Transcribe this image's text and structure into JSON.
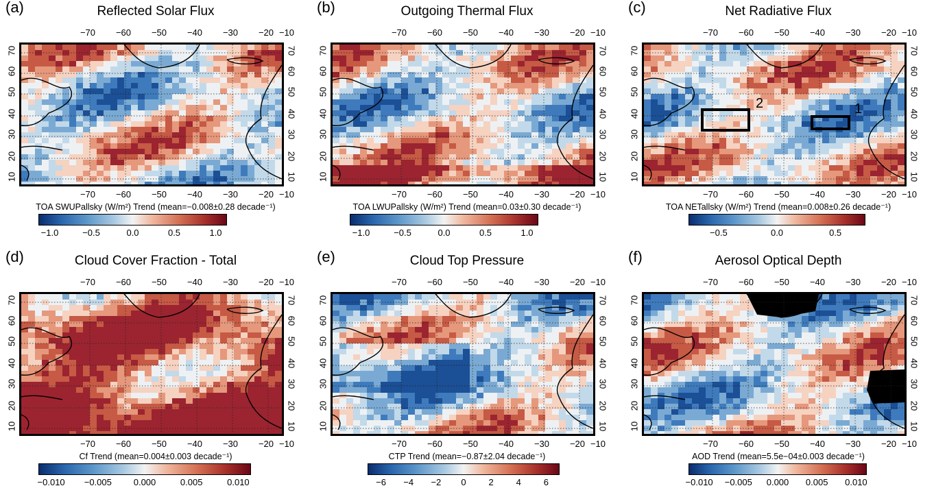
{
  "panels": [
    {
      "label": "(a)",
      "title": "Reflected Solar Flux",
      "colorbar_label": "TOA SWUPallsky (W/m²) Trend (mean=−0.008±0.28 decade⁻¹)",
      "colorbar_ticks": [
        "−1.0",
        "−0.5",
        "0.0",
        "0.5",
        "1.0"
      ]
    },
    {
      "label": "(b)",
      "title": "Outgoing Thermal Flux",
      "colorbar_label": "TOA LWUPallsky (W/m²) Trend (mean=0.03±0.30 decade⁻¹)",
      "colorbar_ticks": [
        "−1.0",
        "−0.5",
        "0.0",
        "0.5",
        "1.0"
      ]
    },
    {
      "label": "(c)",
      "title": "Net Radiative Flux",
      "colorbar_label": "TOA NETallsky (W/m²) Trend (mean=0.008±0.26 decade⁻¹)",
      "colorbar_ticks": [
        "−0.5",
        "0.0",
        "0.5"
      ],
      "boxes": [
        "2",
        "1"
      ]
    },
    {
      "label": "(d)",
      "title": "Cloud Cover Fraction - Total",
      "colorbar_label": "Cf Trend (mean=0.004±0.003 decade⁻¹)",
      "colorbar_ticks": [
        "−0.010",
        "−0.005",
        "0.000",
        "0.005",
        "0.010"
      ]
    },
    {
      "label": "(e)",
      "title": "Cloud Top Pressure",
      "colorbar_label": "CTP Trend (mean=−0.87±2.04 decade⁻¹)",
      "colorbar_ticks": [
        "−6",
        "−4",
        "−2",
        "0",
        "2",
        "4",
        "6"
      ]
    },
    {
      "label": "(f)",
      "title": "Aerosol Optical Depth",
      "colorbar_label": "AOD Trend (mean=5.5e−04±0.003 decade⁻¹)",
      "colorbar_ticks": [
        "−0.010",
        "−0.005",
        "0.000",
        "0.005",
        "0.010"
      ]
    }
  ],
  "lon_ticks": [
    "−70",
    "−60",
    "−50",
    "−40",
    "−30",
    "−20",
    "−10"
  ],
  "lat_ticks": [
    "70",
    "60",
    "50",
    "40",
    "30",
    "20",
    "10"
  ],
  "colors": {
    "negative": "#2a66ad",
    "neutral": "#f2f3f3",
    "positive": "#a8322c"
  }
}
